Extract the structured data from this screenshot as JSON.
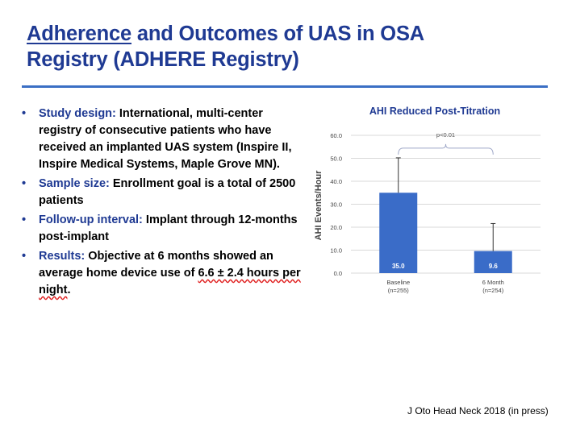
{
  "title": {
    "underlined": "Adherence",
    "rest_line1": " and Outcomes of UAS in OSA",
    "line2": "Registry (ADHERE Registry)"
  },
  "bullets": [
    {
      "label": "Study design:",
      "text": " International, multi-center registry of consecutive patients who have received an implanted UAS system (Inspire II, Inspire Medical Systems, Maple Grove MN)."
    },
    {
      "label": "Sample size:",
      "text": " Enrollment goal is a total of 2500 patients"
    },
    {
      "label": "Follow-up interval:",
      "text": " Implant through 12-months post-implant"
    },
    {
      "label": "Results:",
      "text_before": " Objective at 6 months showed an average home device use of ",
      "highlight": "6.6 ± 2.4 hours per night",
      "text_after": "."
    }
  ],
  "bullet_glyph": "•",
  "citation": "J Oto Head Neck 2018 (in press)",
  "colors": {
    "title": "#1f3a93",
    "rule": "#3b6fc4",
    "bar": "#3a6cc8",
    "underline_red": "#e02020"
  },
  "chart_data": {
    "type": "bar",
    "title": "AHI Reduced Post-Titration",
    "ylabel": "AHI Events/Hour",
    "ylim": [
      0,
      60
    ],
    "yticks": [
      "0.0",
      "10.0",
      "20.0",
      "30.0",
      "40.0",
      "50.0",
      "60.0"
    ],
    "categories": [
      {
        "name": "Baseline",
        "sub": "(n=255)"
      },
      {
        "name": "6 Month",
        "sub": "(n=254)"
      }
    ],
    "values": [
      35.0,
      9.6
    ],
    "value_labels": [
      "35.0",
      "9.6"
    ],
    "error_upper": [
      50.2,
      21.6
    ],
    "annotation": "p<0.01",
    "grid": true
  }
}
